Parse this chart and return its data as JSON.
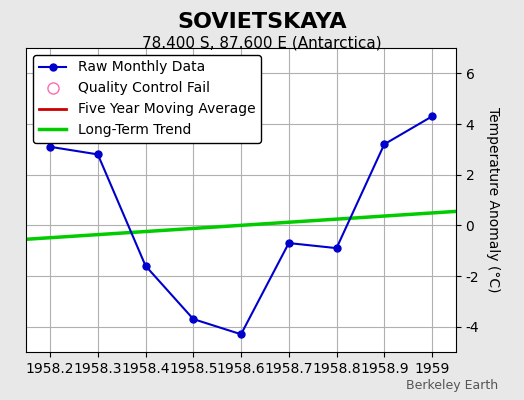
{
  "title": "SOVIETSKAYA",
  "subtitle": "78.400 S, 87.600 E (Antarctica)",
  "ylabel": "Temperature Anomaly (°C)",
  "watermark": "Berkeley Earth",
  "xlim": [
    1958.15,
    1959.05
  ],
  "ylim": [
    -5.0,
    7.0
  ],
  "yticks": [
    -4,
    -2,
    0,
    2,
    4,
    6
  ],
  "xticks": [
    1958.2,
    1958.3,
    1958.4,
    1958.5,
    1958.6,
    1958.7,
    1958.8,
    1958.9,
    1959.0
  ],
  "xtick_labels": [
    "1958.2",
    "1958.3",
    "1958.4",
    "1958.5",
    "1958.6",
    "1958.7",
    "1958.8",
    "1958.9",
    "1959"
  ],
  "raw_x": [
    1958.2,
    1958.3,
    1958.4,
    1958.5,
    1958.6,
    1958.7,
    1958.8,
    1958.9,
    1959.0
  ],
  "raw_y": [
    3.1,
    2.8,
    -1.6,
    -3.7,
    -4.3,
    -0.7,
    -0.9,
    3.2,
    4.3
  ],
  "trend_x": [
    1958.15,
    1959.05
  ],
  "trend_y": [
    -0.55,
    0.55
  ],
  "raw_color": "#0000cc",
  "trend_color": "#00cc00",
  "moving_avg_color": "#cc0000",
  "qc_color": "#ff69b4",
  "bg_color": "#e8e8e8",
  "plot_bg_color": "#ffffff",
  "grid_color": "#b0b0b0",
  "title_fontsize": 16,
  "subtitle_fontsize": 11,
  "label_fontsize": 10,
  "tick_fontsize": 10,
  "legend_fontsize": 10
}
